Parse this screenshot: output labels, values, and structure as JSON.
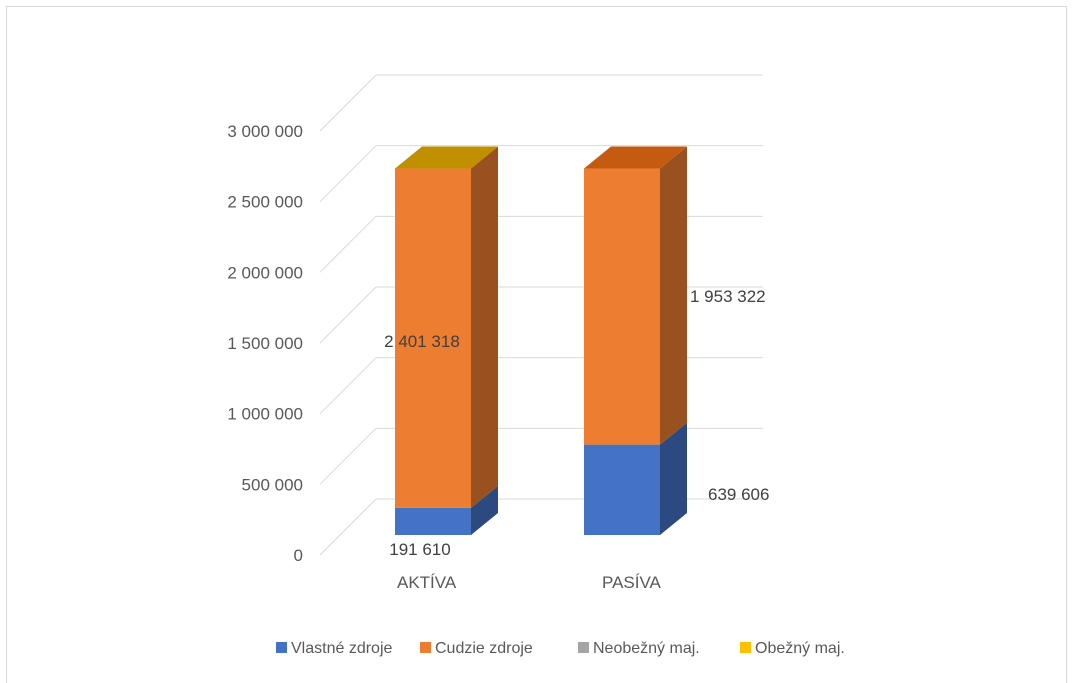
{
  "chart_data": {
    "type": "bar",
    "stacked": true,
    "three_d": true,
    "categories": [
      "AKTÍVA",
      "PASÍVA"
    ],
    "series": [
      {
        "name": "Vlastné zdroje",
        "color": "#4472c4",
        "values": [
          191610,
          639606
        ]
      },
      {
        "name": "Cudzie zdroje",
        "color": "#ed7d31",
        "values": [
          2401318,
          1953322
        ]
      },
      {
        "name": "Neobežný maj.",
        "color": "#a5a5a5",
        "values": [
          0,
          0
        ]
      },
      {
        "name": "Obežný maj.",
        "color": "#ffc000",
        "values": [
          0,
          0
        ]
      }
    ],
    "data_labels": [
      {
        "series": 0,
        "category": 0,
        "text": "191 610"
      },
      {
        "series": 1,
        "category": 0,
        "text": "2 401 318"
      },
      {
        "series": 0,
        "category": 1,
        "text": "639 606"
      },
      {
        "series": 1,
        "category": 1,
        "text": "1 953 322"
      }
    ],
    "y_ticks": [
      0,
      500000,
      1000000,
      1500000,
      2000000,
      2500000,
      3000000
    ],
    "y_tick_labels": [
      "0",
      "500 000",
      "1 000 000",
      "1 500 000",
      "2 000 000",
      "2 500 000",
      "3 000 000"
    ],
    "ylim": [
      0,
      3000000
    ],
    "grid": true,
    "legend_position": "bottom",
    "title": "",
    "xlabel": "",
    "ylabel": ""
  }
}
